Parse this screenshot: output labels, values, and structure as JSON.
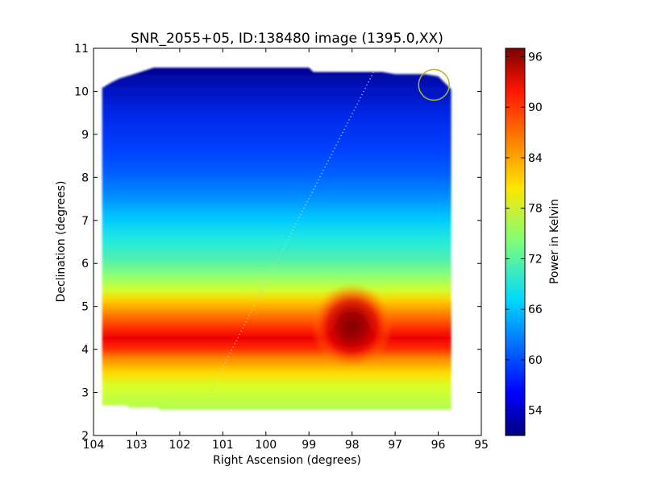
{
  "chart_data": {
    "type": "heatmap",
    "title": "SNR_2055+05, ID:138480 image (1395.0,XX)",
    "xlabel": "Right Ascension (degrees)",
    "ylabel": "Declination (degrees)",
    "xlim": [
      104,
      95
    ],
    "ylim": [
      2,
      11
    ],
    "x_ticks": [
      "104",
      "103",
      "102",
      "101",
      "100",
      "99",
      "98",
      "97",
      "96",
      "95"
    ],
    "y_ticks": [
      "2",
      "3",
      "4",
      "5",
      "6",
      "7",
      "8",
      "9",
      "10",
      "11"
    ],
    "colorbar": {
      "label": "Power in Kelvin",
      "range": [
        51,
        97
      ],
      "ticks": [
        "54",
        "60",
        "66",
        "72",
        "78",
        "84",
        "90",
        "96"
      ],
      "colormap": "jet"
    },
    "grid": false,
    "map_extent": {
      "ra_range": [
        103.8,
        95.7
      ],
      "dec_range": [
        2.7,
        10.55
      ]
    },
    "features": {
      "band": {
        "dec_center": 4.1,
        "peak_kelvin": 90
      },
      "source": {
        "ra": 98.0,
        "dec": 4.55,
        "peak_kelvin": 97
      },
      "dotted_line": {
        "from": {
          "ra": 101.4,
          "dec": 2.8
        },
        "to": {
          "ra": 97.5,
          "dec": 10.45
        }
      },
      "circle": {
        "ra": 96.1,
        "dec": 10.15
      }
    },
    "colors": {
      "circle": "#b5b52a",
      "dotted_line": "#b8d8b8"
    }
  }
}
